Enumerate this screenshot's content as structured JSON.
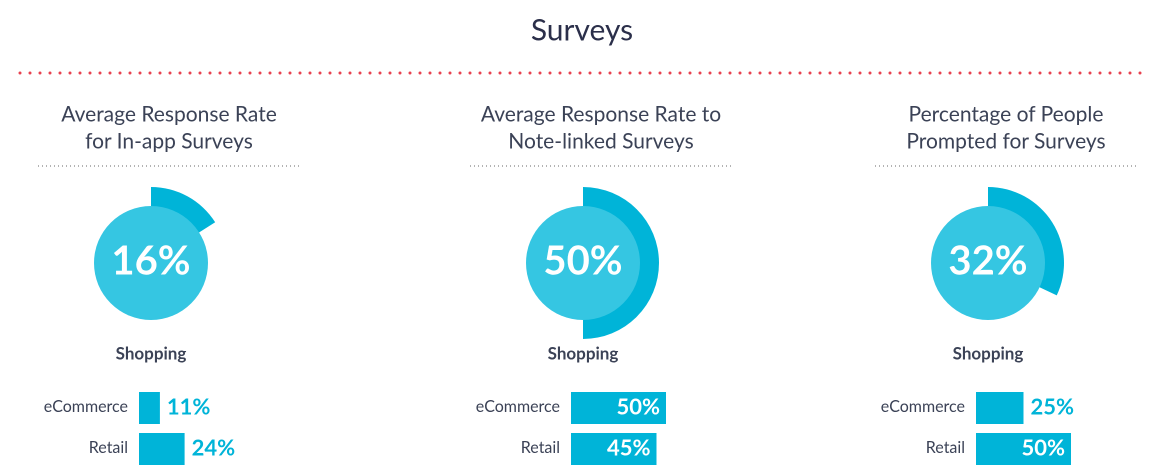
{
  "title": "Surveys",
  "chart_data": [
    {
      "type": "ring",
      "title": [
        "Average Response Rate",
        "for In-app Surveys"
      ],
      "value": 16,
      "value_label": "16%",
      "subtitle": "Shopping",
      "categories": [
        "eCommerce",
        "Retail"
      ],
      "values": [
        11,
        24
      ],
      "value_labels": [
        "11%",
        "24%"
      ],
      "color": "#00b4d8",
      "xlim": [
        0,
        100
      ]
    },
    {
      "type": "ring",
      "title": [
        "Average Response Rate to",
        "Note-linked Surveys"
      ],
      "value": 50,
      "value_label": "50%",
      "subtitle": "Shopping",
      "categories": [
        "eCommerce",
        "Retail"
      ],
      "values": [
        50,
        45
      ],
      "value_labels": [
        "50%",
        "45%"
      ],
      "color": "#00b4d8",
      "xlim": [
        0,
        100
      ]
    },
    {
      "type": "ring",
      "title": [
        "Percentage of People",
        "Prompted for Surveys"
      ],
      "value": 32,
      "value_label": "32%",
      "subtitle": "Shopping",
      "categories": [
        "eCommerce",
        "Retail"
      ],
      "values": [
        25,
        50
      ],
      "value_labels": [
        "25%",
        "50%"
      ],
      "color": "#00b4d8",
      "xlim": [
        0,
        100
      ]
    }
  ]
}
